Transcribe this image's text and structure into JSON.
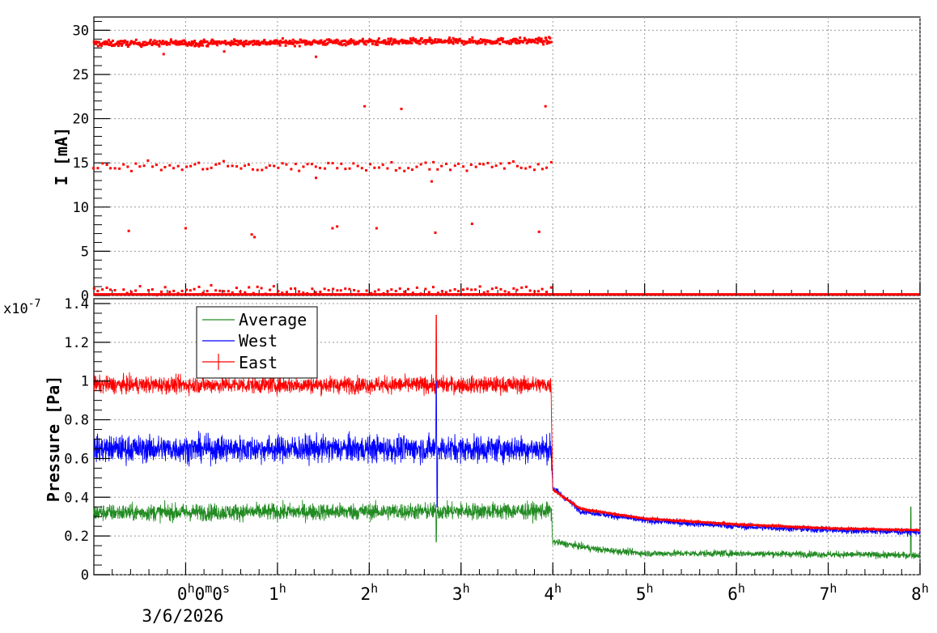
{
  "chart_data": [
    {
      "type": "scatter",
      "ylabel": "I [mA]",
      "xlim": [
        -1,
        8
      ],
      "ylim": [
        0,
        32
      ],
      "yticks": [
        "0",
        "5",
        "10",
        "15",
        "20",
        "25",
        "30"
      ],
      "grid": true,
      "series": [
        {
          "color": "#ff0000",
          "bands": [
            {
              "x_start": -1,
              "x_end": 3.98,
              "y_start": 28.5,
              "y_end": 28.8,
              "noise": 0.35,
              "count": 700
            },
            {
              "x_start": -1,
              "x_end": 3.98,
              "y_start": 14.6,
              "y_end": 14.6,
              "noise": 0.55,
              "count": 110
            },
            {
              "x_start": -1,
              "x_end": 3.98,
              "y_start": 0.6,
              "y_end": 0.6,
              "noise": 0.5,
              "count": 110
            },
            {
              "x_start": -1,
              "x_end": 8,
              "y_start": 0.03,
              "y_end": 0.03,
              "noise": 0,
              "count": 0
            }
          ],
          "points": [
            {
              "x": -0.24,
              "y": 27.3
            },
            {
              "x": 0.42,
              "y": 27.6
            },
            {
              "x": 1.42,
              "y": 27.0
            },
            {
              "x": 1.95,
              "y": 21.4
            },
            {
              "x": 2.35,
              "y": 21.1
            },
            {
              "x": 3.92,
              "y": 21.4
            },
            {
              "x": -0.62,
              "y": 7.3
            },
            {
              "x": 0.0,
              "y": 7.6
            },
            {
              "x": 0.72,
              "y": 6.9
            },
            {
              "x": 0.75,
              "y": 6.6
            },
            {
              "x": 1.6,
              "y": 7.6
            },
            {
              "x": 1.65,
              "y": 7.8
            },
            {
              "x": 2.08,
              "y": 7.6
            },
            {
              "x": 2.72,
              "y": 7.1
            },
            {
              "x": 3.12,
              "y": 8.1
            },
            {
              "x": 3.85,
              "y": 7.2
            },
            {
              "x": 2.68,
              "y": 12.9
            },
            {
              "x": 1.42,
              "y": 13.3
            }
          ]
        }
      ]
    },
    {
      "type": "line",
      "ylabel": "Pressure [Pa]",
      "yexponent": "x10-7",
      "xlim": [
        -1,
        8
      ],
      "ylim": [
        0,
        1.4
      ],
      "yticks": [
        "0",
        "0.2",
        "0.4",
        "0.6",
        "0.8",
        "1",
        "1.2",
        "1.4"
      ],
      "xticks": [
        "0h0m0s",
        "1h",
        "2h",
        "3h",
        "4h",
        "5h",
        "6h",
        "7h",
        "8h"
      ],
      "xdate": "3/6/2026",
      "grid": true,
      "legend_position": "top-left",
      "series": [
        {
          "name": "Average",
          "color": "#228b22",
          "profile": [
            {
              "x": -1,
              "y": 0.32
            },
            {
              "x": 3.98,
              "y": 0.33
            },
            {
              "x": 4.0,
              "y": 0.17
            },
            {
              "x": 4.5,
              "y": 0.13
            },
            {
              "x": 5.0,
              "y": 0.11
            },
            {
              "x": 6.0,
              "y": 0.11
            },
            {
              "x": 8.0,
              "y": 0.1
            }
          ],
          "noise_before": 0.045,
          "noise_after": 0.018,
          "spikes": [
            {
              "x": 2.73,
              "y": 0.17
            },
            {
              "x": 7.9,
              "y": 0.35
            }
          ]
        },
        {
          "name": "West",
          "color": "#0000ff",
          "profile": [
            {
              "x": -1,
              "y": 0.65
            },
            {
              "x": 3.98,
              "y": 0.65
            },
            {
              "x": 4.0,
              "y": 0.45
            },
            {
              "x": 4.3,
              "y": 0.33
            },
            {
              "x": 5.0,
              "y": 0.28
            },
            {
              "x": 6.0,
              "y": 0.25
            },
            {
              "x": 7.0,
              "y": 0.23
            },
            {
              "x": 8.0,
              "y": 0.22
            }
          ],
          "noise_before": 0.07,
          "noise_after": 0.017,
          "spikes": [
            {
              "x": 2.73,
              "y": 1.0
            },
            {
              "x": 2.74,
              "y": 0.35
            }
          ]
        },
        {
          "name": "East",
          "color": "#ff0000",
          "profile": [
            {
              "x": -1,
              "y": 0.98
            },
            {
              "x": 3.98,
              "y": 0.98
            },
            {
              "x": 4.0,
              "y": 0.44
            },
            {
              "x": 4.3,
              "y": 0.34
            },
            {
              "x": 5.0,
              "y": 0.29
            },
            {
              "x": 6.0,
              "y": 0.26
            },
            {
              "x": 7.0,
              "y": 0.24
            },
            {
              "x": 8.0,
              "y": 0.23
            }
          ],
          "noise_before": 0.045,
          "noise_after": 0.01,
          "spikes": [
            {
              "x": 2.73,
              "y": 1.34
            }
          ]
        }
      ]
    }
  ]
}
